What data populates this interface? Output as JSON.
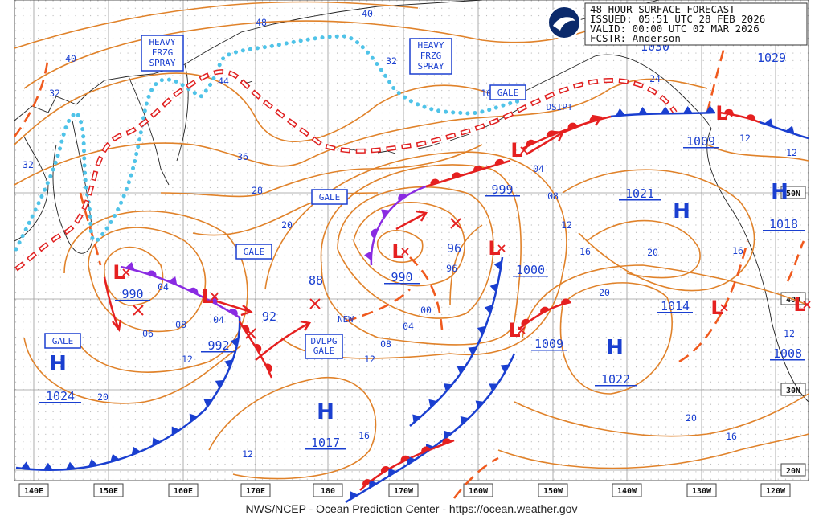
{
  "header": {
    "title": "48-HOUR SURFACE FORECAST",
    "issued": "ISSUED: 05:51 UTC 28 FEB 2026",
    "valid": "VALID:  00:00 UTC 02 MAR 2026",
    "forecaster": "FCSTR:  Anderson"
  },
  "longitudes": [
    "140E",
    "150E",
    "160E",
    "170E",
    "180",
    "170W",
    "160W",
    "150W",
    "140W",
    "130W",
    "120W"
  ],
  "latitudes": [
    "50N",
    "40N",
    "30N",
    "20N"
  ],
  "highs": [
    {
      "symbol": "H",
      "pressure": "1024"
    },
    {
      "symbol": "H",
      "pressure": "1017"
    },
    {
      "symbol": "H",
      "pressure": "1021"
    },
    {
      "symbol": "H",
      "pressure": "1022"
    },
    {
      "symbol": "H",
      "pressure": "1018"
    }
  ],
  "lows": [
    {
      "symbol": "L",
      "pressure": "990"
    },
    {
      "symbol": "L",
      "pressure": "992"
    },
    {
      "symbol": "L",
      "pressure": "990"
    },
    {
      "symbol": "L",
      "pressure": "1000"
    },
    {
      "symbol": "L",
      "pressure": "1009"
    },
    {
      "symbol": "L",
      "pressure": "999"
    },
    {
      "symbol": "L",
      "pressure": "1009"
    },
    {
      "symbol": "L",
      "pressure": "1014"
    },
    {
      "symbol": "L",
      "pressure": "1008"
    }
  ],
  "other_pressures": [
    "1029",
    "1030"
  ],
  "isobar_labels": [
    "48",
    "40",
    "40",
    "32",
    "32",
    "44",
    "36",
    "28",
    "20",
    "16",
    "24",
    "12",
    "12",
    "32",
    "04",
    "06",
    "08",
    "12",
    "20",
    "04",
    "92",
    "88",
    "96",
    "96",
    "00",
    "04",
    "08",
    "12",
    "16",
    "12",
    "04",
    "08",
    "12",
    "16",
    "20",
    "20",
    "16",
    "12",
    "20",
    "16"
  ],
  "warnings": [
    {
      "lines": [
        "HEAVY",
        "FRZG",
        "SPRAY"
      ]
    },
    {
      "lines": [
        "HEAVY",
        "FRZG",
        "SPRAY"
      ]
    }
  ],
  "gales": [
    "GALE",
    "GALE",
    "GALE",
    "GALE"
  ],
  "developing_gale": [
    "DVLPG",
    "GALE"
  ],
  "annotations": [
    "NEW",
    "DSIPT"
  ],
  "footer": "NWS/NCEP - Ocean Prediction Center - https://ocean.weather.gov"
}
